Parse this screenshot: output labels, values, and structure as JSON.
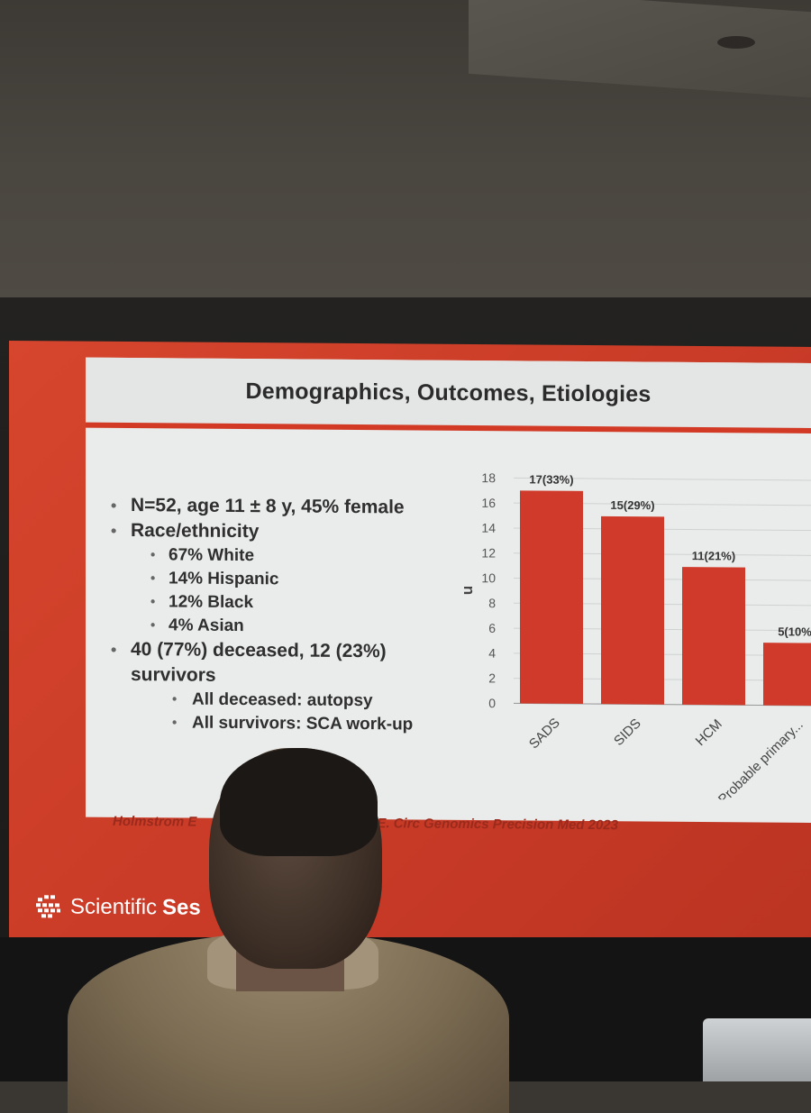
{
  "slide": {
    "title": "Demographics, Outcomes, Etiologies",
    "bullets": {
      "b1": "N=52, age 11 ± 8 y, 45% female",
      "b2": "Race/ethnicity",
      "race": [
        "67% White",
        "14% Hispanic",
        "12% Black",
        "4% Asian"
      ],
      "b3_line1": "40 (77%) deceased, 12 (23%)",
      "b3_line2": "survivors",
      "sub": [
        "All deceased: autopsy",
        "All survivors: SCA work-up"
      ]
    },
    "footer_left": "Holmstrom E",
    "footer_right": "sdorf E. Circ Genomics Precision Med 2023",
    "logo_text_1": "Scientific",
    "logo_text_2": "Ses"
  },
  "chart_data": {
    "type": "bar",
    "categories": [
      "SADS",
      "SIDS",
      "HCM",
      "Probable primary..."
    ],
    "values": [
      17,
      15,
      11,
      5
    ],
    "data_labels": [
      "17(33%)",
      "15(29%)",
      "11(21%)",
      "5(10%"
    ],
    "ylabel": "n",
    "ylim": [
      0,
      18
    ],
    "yticks": [
      0,
      2,
      4,
      6,
      8,
      10,
      12,
      14,
      16,
      18
    ],
    "grid": true,
    "bar_color": "#cf3a2a"
  },
  "colors": {
    "accent": "#d23a26",
    "slide_bg": "#e9ecea",
    "text": "#2f2f2f"
  }
}
